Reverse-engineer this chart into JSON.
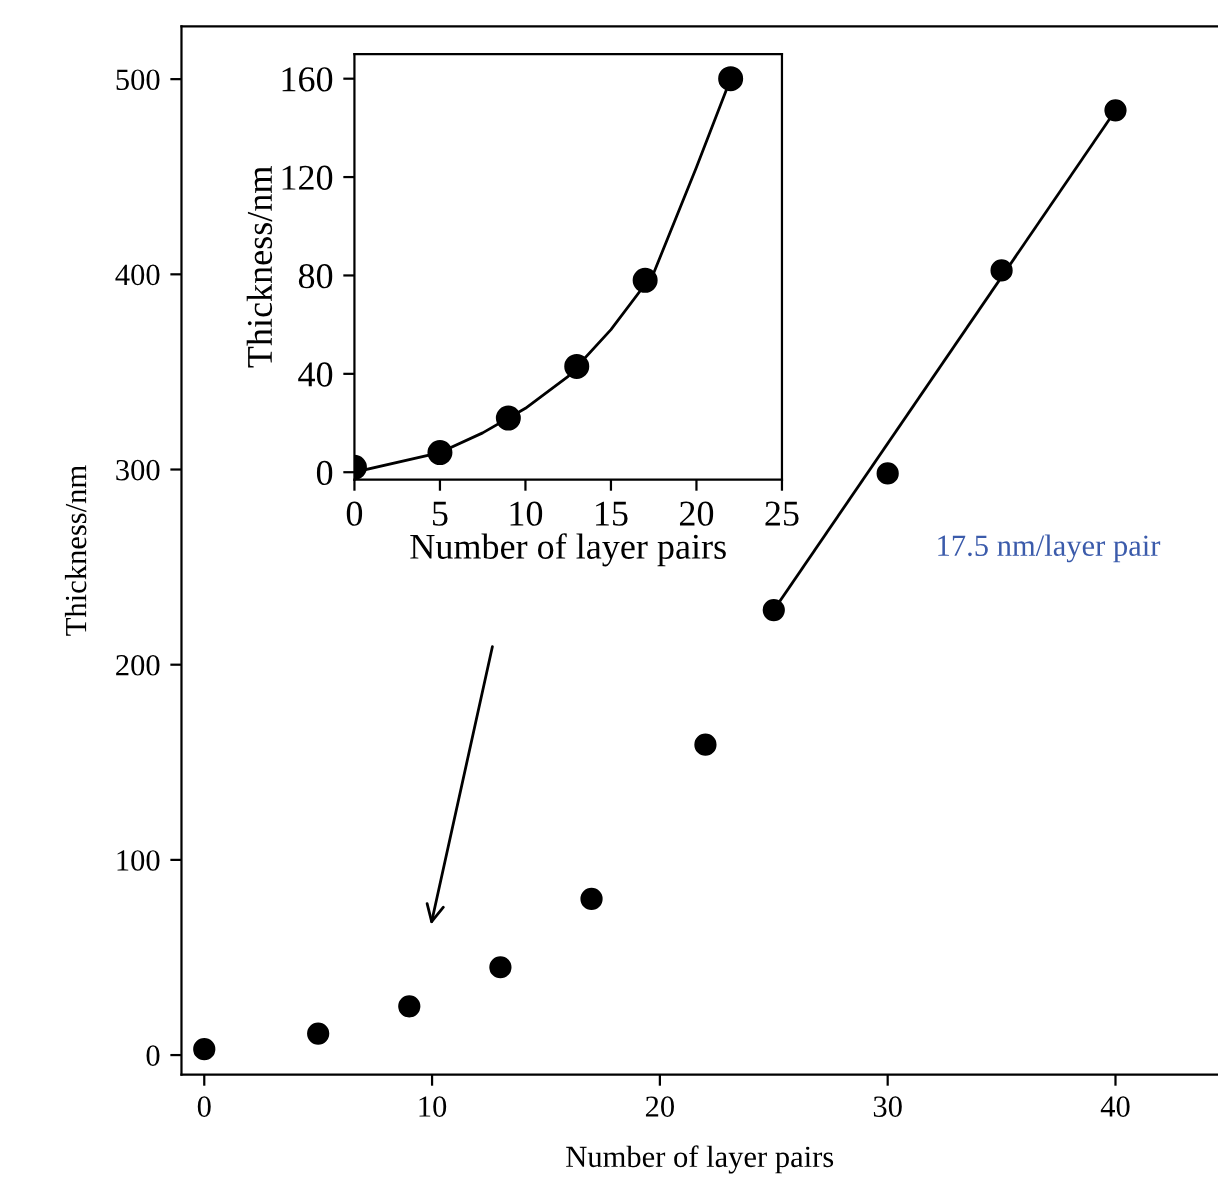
{
  "chart_data": [
    {
      "type": "scatter",
      "xlabel": "Number of layer pairs",
      "ylabel": "Thickness/nm",
      "xlim": [
        -1,
        44.5
      ],
      "ylim": [
        -10,
        527
      ],
      "xticks": [
        0,
        10,
        20,
        30,
        40
      ],
      "yticks": [
        0,
        100,
        200,
        300,
        400,
        500
      ],
      "grid": false,
      "legend": false,
      "annotations": [
        "17.5 nm/layer pair"
      ],
      "series": [
        {
          "color": "#000000",
          "marker": "circle",
          "x": [
            0,
            5,
            9,
            13,
            17,
            22,
            25,
            30,
            35,
            40
          ],
          "values": [
            3,
            11,
            25,
            45,
            80,
            159,
            228,
            298,
            402,
            484
          ]
        },
        {
          "type": "line",
          "color": "#000000",
          "marker": "none",
          "line_style": "solid",
          "x": [
            25,
            40
          ],
          "values": [
            228,
            484
          ]
        }
      ]
    },
    {
      "type": "scatter",
      "xlabel": "Number of layer pairs",
      "ylabel": "Thickness/nm",
      "xlim": [
        0,
        25
      ],
      "ylim": [
        -3,
        170
      ],
      "xticks": [
        0,
        5,
        10,
        15,
        20,
        25
      ],
      "yticks": [
        0,
        40,
        80,
        120,
        160
      ],
      "grid": false,
      "legend": false,
      "series": [
        {
          "type": "line",
          "color": "#000000",
          "marker": "none",
          "line_style": "solid",
          "x": [
            0,
            5,
            7.5,
            10,
            12.5,
            15,
            17.5,
            20,
            22
          ],
          "values": [
            0,
            8,
            16,
            26,
            39,
            58,
            81,
            124,
            160
          ]
        },
        {
          "color": "#000000",
          "marker": "circle",
          "x": [
            0,
            5,
            9,
            13,
            17,
            22
          ],
          "values": [
            2,
            8,
            22,
            43,
            78,
            160
          ]
        }
      ]
    }
  ]
}
